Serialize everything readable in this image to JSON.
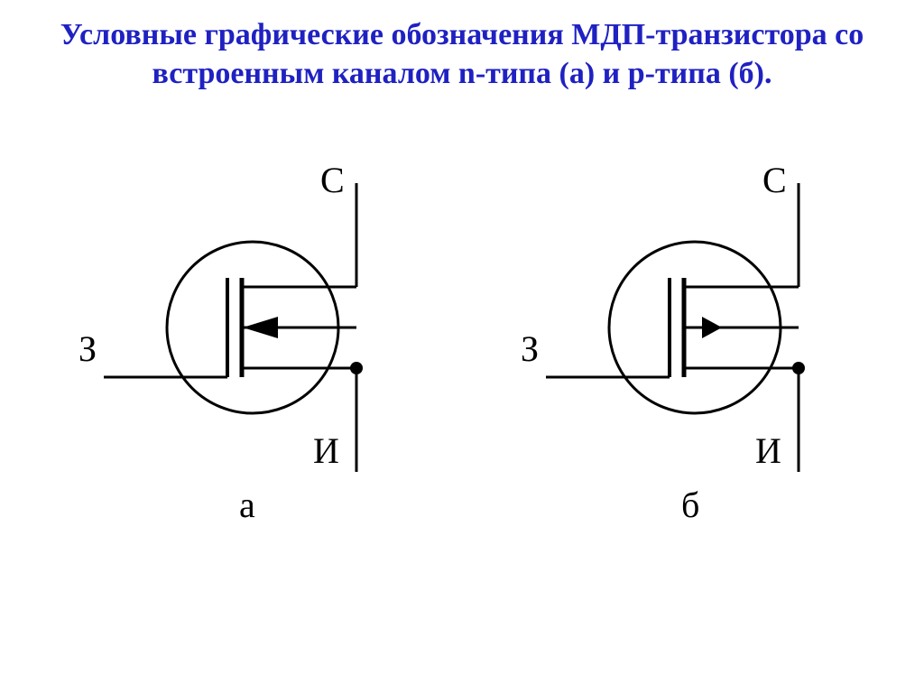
{
  "title": {
    "text": "Условные графические обозначения МДП-транзистора со встроенным каналом n-типа (а) и p-типа (б).",
    "color": "#1f21c2",
    "fontsize": 34
  },
  "labels": {
    "gate": "З",
    "drain": "С",
    "source": "И",
    "sub_a": "а",
    "sub_b": "б",
    "label_fontsize": 40,
    "sub_fontsize": 40,
    "label_color": "#000000"
  },
  "diagram": {
    "stroke_color": "#000000",
    "stroke_width": 3,
    "background_color": "#ffffff",
    "circle_radius": 95,
    "node_dot_radius": 7,
    "type": "schematic-symbol"
  },
  "left": {
    "caption": "а",
    "arrow_direction": "in",
    "channel_type": "n"
  },
  "right": {
    "caption": "б",
    "arrow_direction": "out",
    "channel_type": "p"
  }
}
